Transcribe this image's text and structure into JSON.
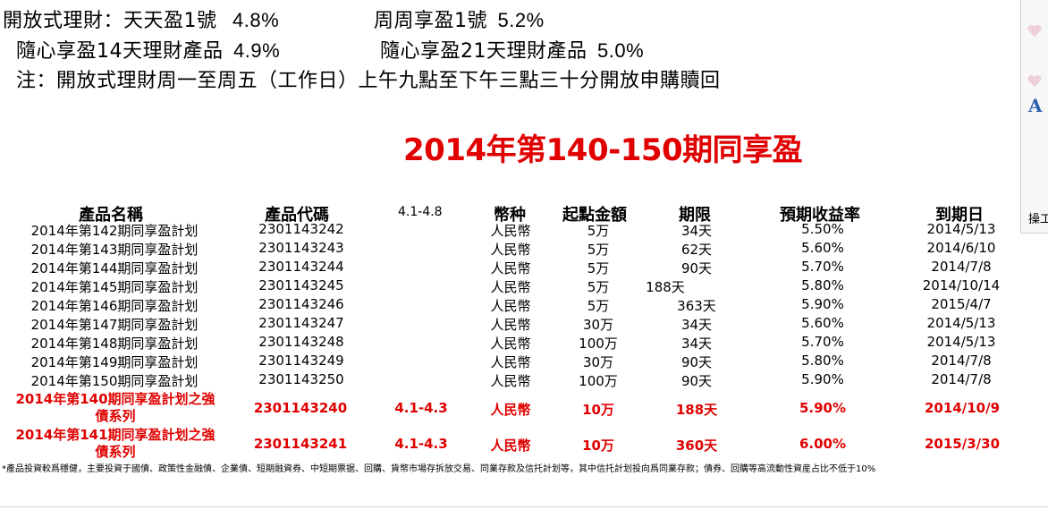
{
  "intro": {
    "line1_a": "開放式理財：天天盈1號",
    "line1_a_pct": "4.8%",
    "line1_b": "周周享盈1號",
    "line1_b_pct": "5.2%",
    "line2_a": "隨心享盈14天理財產品",
    "line2_a_pct": "4.9%",
    "line2_b": "隨心享盈21天理財產品",
    "line2_b_pct": "5.0%",
    "note": "注：開放式理財周一至周五（工作日）上午九點至下午三點三十分開放申購贖回"
  },
  "title": "2014年第140-150期同享盈",
  "table": {
    "headers": {
      "name": "產品名稱",
      "code": "產品代碼",
      "period": "4.1-4.8",
      "currency": "幣种",
      "min_amount": "起點金額",
      "term": "期限",
      "yield": "預期收益率",
      "maturity": "到期日"
    },
    "rows": [
      {
        "name": "2014年第142期同享盈計划",
        "code": "2301143242",
        "currency": "人民幣",
        "min": "5万",
        "term": "34天",
        "yield": "5.50%",
        "maturity": "2014/5/13"
      },
      {
        "name": "2014年第143期同享盈計划",
        "code": "2301143243",
        "currency": "人民幣",
        "min": "5万",
        "term": "62天",
        "yield": "5.60%",
        "maturity": "2014/6/10"
      },
      {
        "name": "2014年第144期同享盈計划",
        "code": "2301143244",
        "currency": "人民幣",
        "min": "5万",
        "term": "90天",
        "yield": "5.70%",
        "maturity": "2014/7/8"
      },
      {
        "name": "2014年第145期同享盈計划",
        "code": "2301143245",
        "currency": "人民幣",
        "min": "5万",
        "term": "188天",
        "yield": "5.80%",
        "maturity": "2014/10/14"
      },
      {
        "name": "2014年第146期同享盈計划",
        "code": "2301143246",
        "currency": "人民幣",
        "min": "5万",
        "term": "363天",
        "yield": "5.90%",
        "maturity": "2015/4/7"
      },
      {
        "name": "2014年第147期同享盈計划",
        "code": "2301143247",
        "currency": "人民幣",
        "min": "30万",
        "term": "34天",
        "yield": "5.60%",
        "maturity": "2014/5/13"
      },
      {
        "name": "2014年第148期同享盈計划",
        "code": "2301143248",
        "currency": "人民幣",
        "min": "100万",
        "term": "34天",
        "yield": "5.70%",
        "maturity": "2014/5/13"
      },
      {
        "name": "2014年第149期同享盈計划",
        "code": "2301143249",
        "currency": "人民幣",
        "min": "30万",
        "term": "90天",
        "yield": "5.80%",
        "maturity": "2014/7/8"
      },
      {
        "name": "2014年第150期同享盈計划",
        "code": "2301143250",
        "currency": "人民幣",
        "min": "100万",
        "term": "90天",
        "yield": "5.90%",
        "maturity": "2014/7/8"
      }
    ],
    "featured": [
      {
        "name_line1": "2014年第140期同享盈計划之強",
        "name_line2": "債系列",
        "code": "2301143240",
        "period": "4.1-4.3",
        "currency": "人民幣",
        "min": "10万",
        "term": "188天",
        "yield": "5.90%",
        "maturity": "2014/10/9"
      },
      {
        "name_line1": "2014年第141期同享盈計划之強",
        "name_line2": "債系列",
        "code": "2301143241",
        "period": "4.1-4.3",
        "currency": "人民幣",
        "min": "10万",
        "term": "360天",
        "yield": "6.00%",
        "maturity": "2015/3/30"
      }
    ]
  },
  "footnote": "*產品投資較爲穩健，主要投資于國債、政策性金融債、企業債、短期融資券、中短期票据、回購、貨幣市場存拆放交易、同業存款及信托計划等，其中信托計划投向爲同業存款；債券、回購等高流動性資産占比不低于10%",
  "side_panel": {
    "letter": "A",
    "label": "操工"
  },
  "colors": {
    "accent_red": "#e00000",
    "text": "#000000",
    "background": "#ffffff",
    "side_icon_blue": "#2a5fb0"
  }
}
